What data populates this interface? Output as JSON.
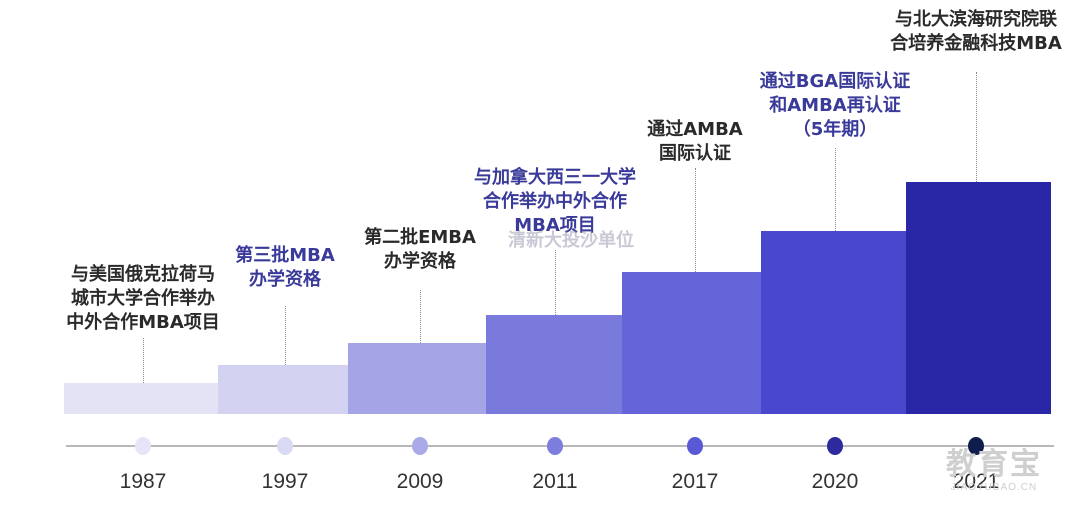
{
  "milestones": [
    {
      "year": "1987",
      "lines": [
        "与美国俄克拉荷马",
        "城市大学合作举办",
        "中外合作MBA项目"
      ],
      "style": "dark",
      "bar_color": "#e4e3f6",
      "dot_color": "#e6e5f7"
    },
    {
      "year": "1997",
      "lines": [
        "第三批MBA",
        "办学资格"
      ],
      "style": "blue",
      "bar_color": "#d3d3f1",
      "dot_color": "#d9d9f3"
    },
    {
      "year": "2009",
      "lines": [
        "第二批EMBA",
        "办学资格"
      ],
      "style": "dark",
      "bar_color": "#a4a4e7",
      "dot_color": "#aaaae8"
    },
    {
      "year": "2011",
      "lines": [
        "与加拿大西三一大学",
        "合作举办中外合作",
        "MBA项目"
      ],
      "style": "blue",
      "bar_color": "#7a7add",
      "dot_color": "#7d7dde"
    },
    {
      "year": "2017",
      "lines": [
        "通过AMBA",
        "国际认证"
      ],
      "style": "dark",
      "bar_color": "#6565d9",
      "dot_color": "#5959d6"
    },
    {
      "year": "2020",
      "lines": [
        "通过BGA国际认证",
        "和AMBA再认证",
        "（5年期）"
      ],
      "style": "blue",
      "bar_color": "#4a47cf",
      "dot_color": "#2c2a9c"
    },
    {
      "year": "2021",
      "lines": [
        "与北大滨海研究院联",
        "合培养金融科技MBA"
      ],
      "style": "dark",
      "bar_color": "#2a27a6",
      "dot_color": "#0f1d4d"
    }
  ],
  "ghost_text": "清新大投沙单位",
  "watermark": {
    "cn": "教育宝",
    "en": "JIAOYUBAO.CN"
  }
}
